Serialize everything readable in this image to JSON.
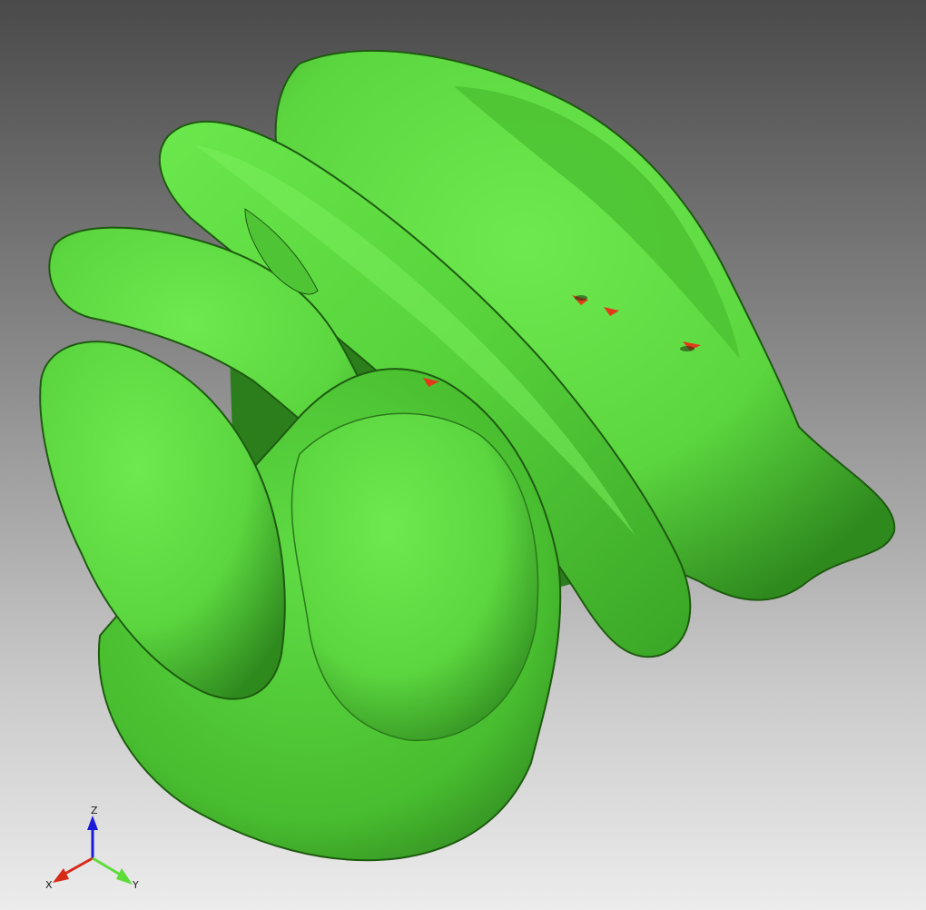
{
  "viewer": {
    "background": {
      "top": "#4a4a4a",
      "bottom": "#ececec"
    },
    "surface": {
      "base": "#5bd63f",
      "highlight": "#6ee94f",
      "shadow": "#2f8a1e",
      "edge": "#1e5a10"
    },
    "defect_color": "#e03a1a",
    "axes": {
      "x": {
        "label": "X",
        "color": "#d82a18"
      },
      "y": {
        "label": "Y",
        "color": "#5edc3a"
      },
      "z": {
        "label": "Z",
        "color": "#1a1ad8"
      }
    }
  }
}
